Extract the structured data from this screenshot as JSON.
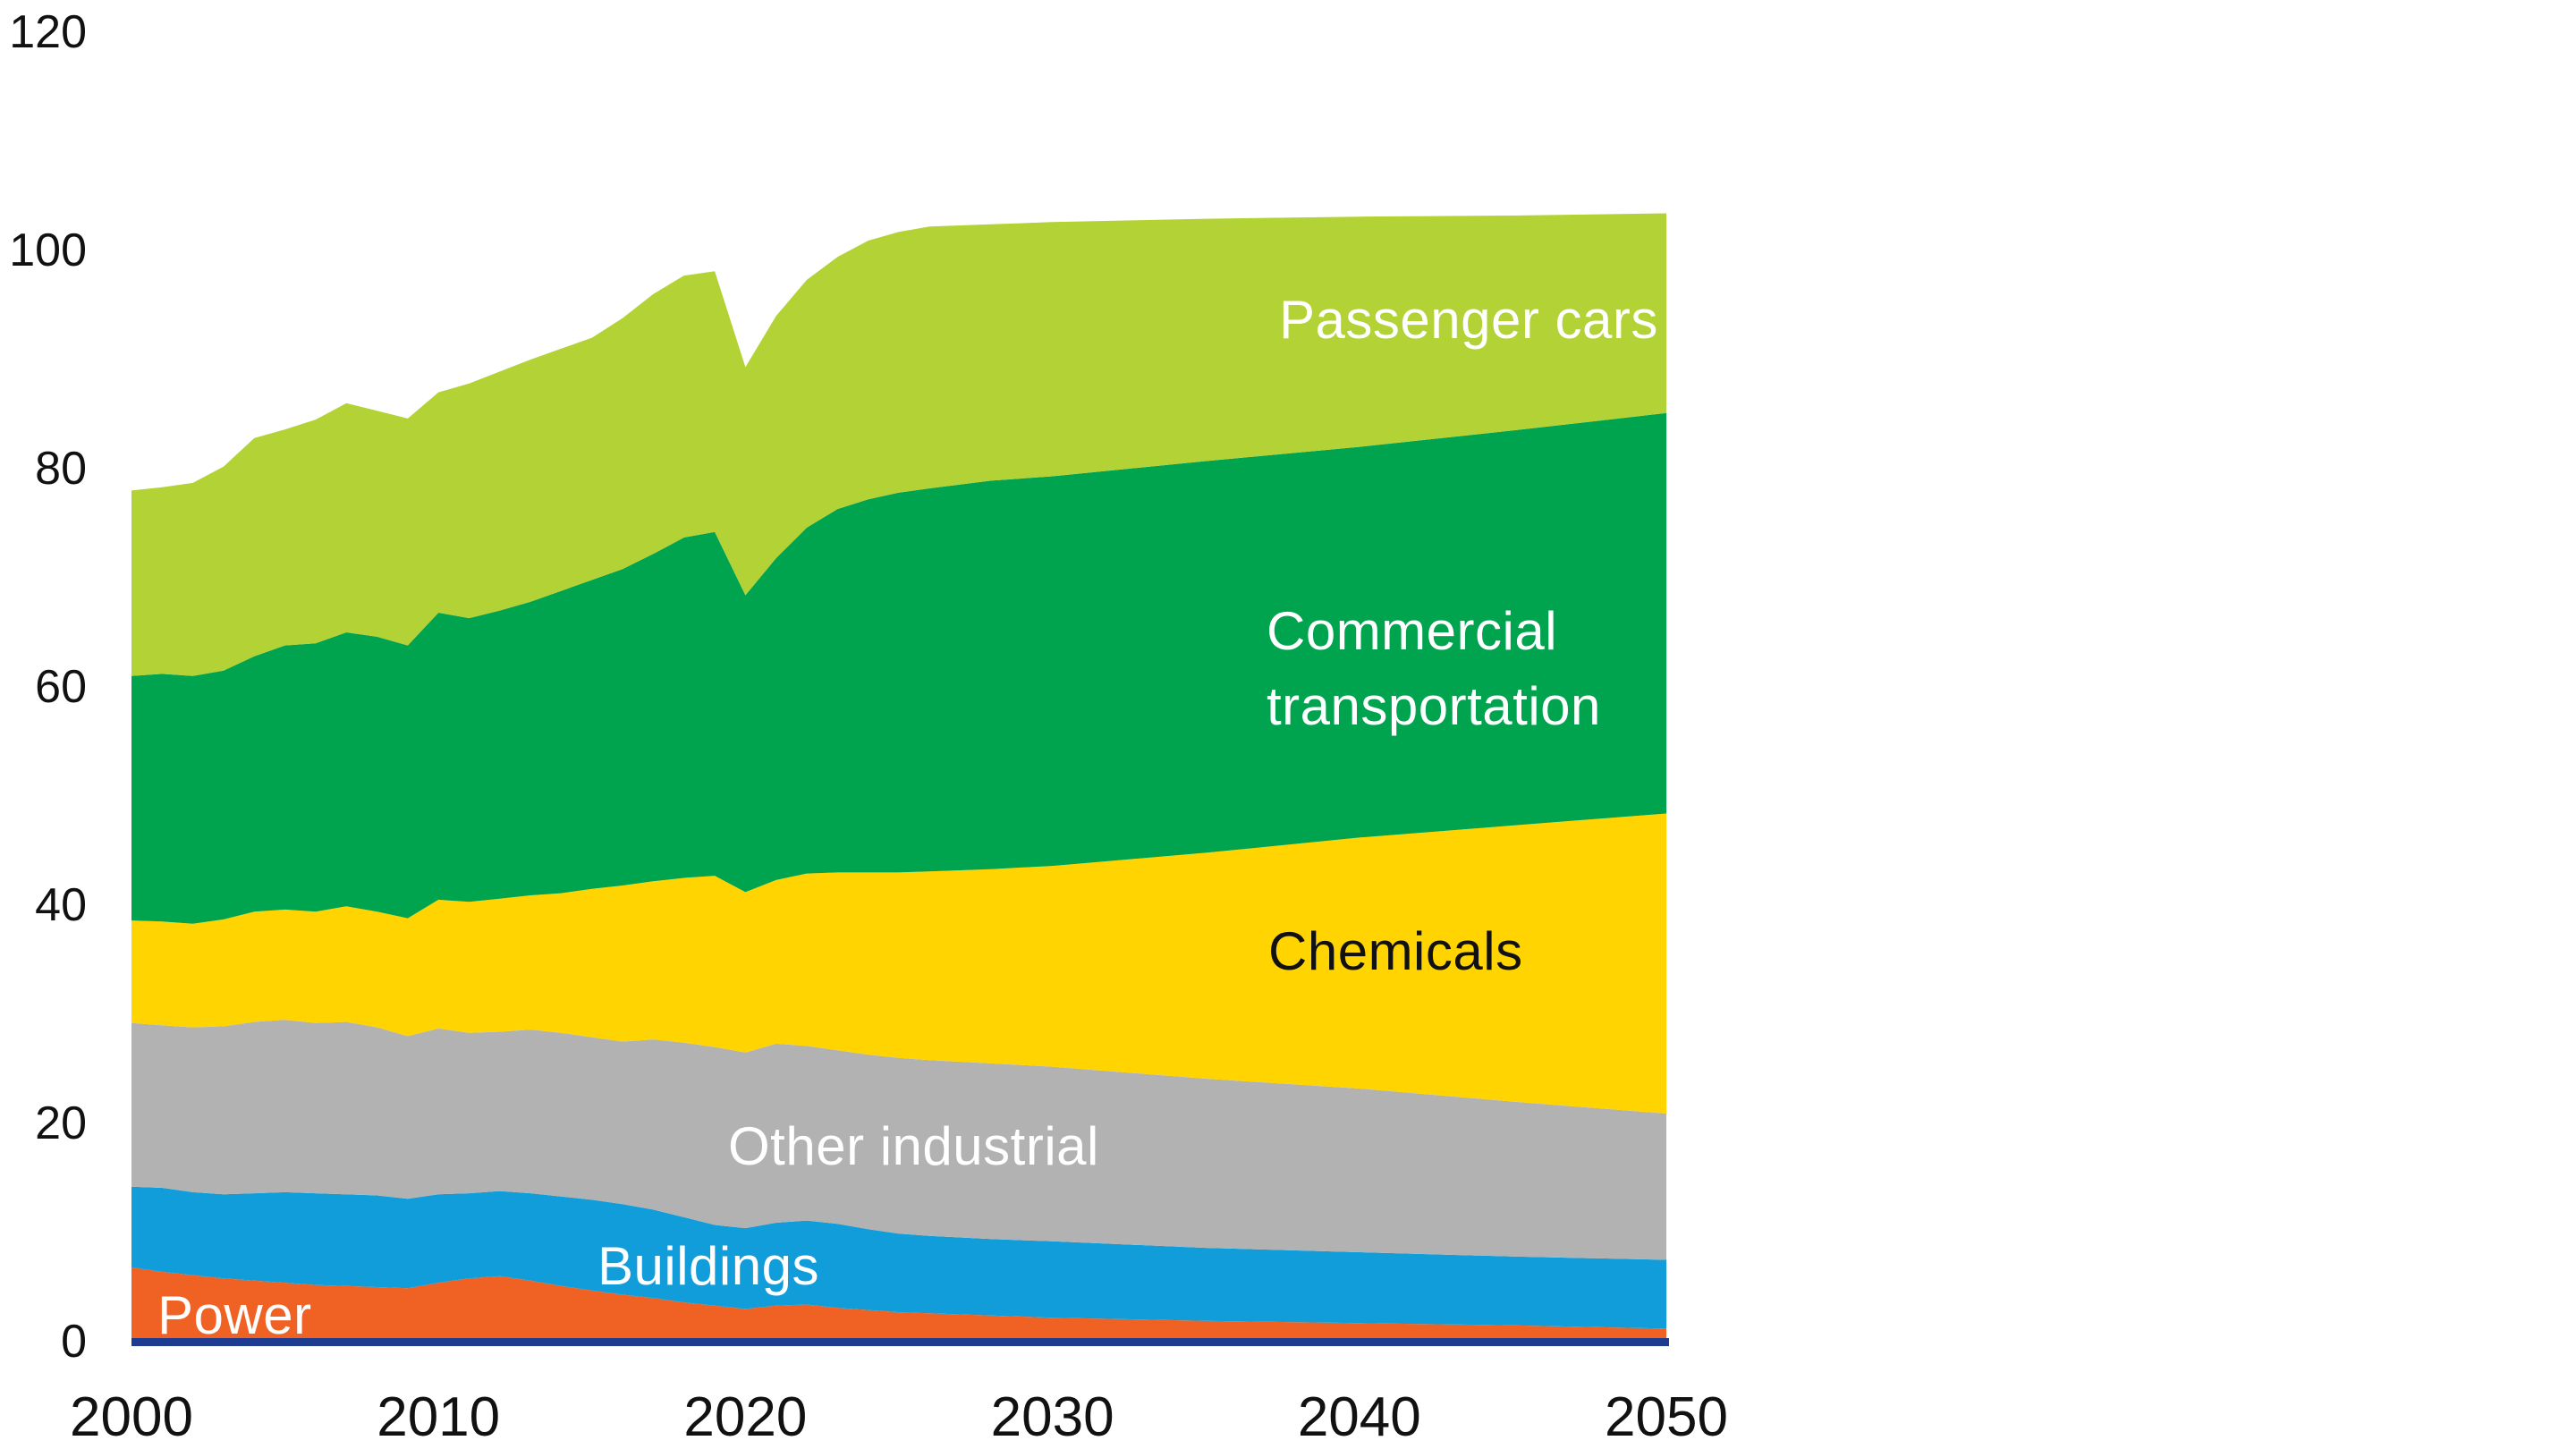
{
  "chart_data": {
    "type": "area",
    "stacked": true,
    "title": "",
    "xlabel": "",
    "ylabel": "",
    "xlim": [
      2000,
      2050
    ],
    "ylim": [
      0,
      120
    ],
    "grid": false,
    "legend": "inline-labels",
    "background_color": "#ffffff",
    "axis_line_color": "#1e3c8f",
    "tick_label_color": "#111111",
    "x_ticks": [
      2000,
      2010,
      2020,
      2030,
      2040,
      2050
    ],
    "y_ticks": [
      0,
      20,
      40,
      60,
      80,
      100,
      120
    ],
    "x": [
      2000,
      2001,
      2002,
      2003,
      2004,
      2005,
      2006,
      2007,
      2008,
      2009,
      2010,
      2011,
      2012,
      2013,
      2014,
      2015,
      2016,
      2017,
      2018,
      2019,
      2020,
      2021,
      2022,
      2023,
      2024,
      2025,
      2026,
      2028,
      2030,
      2035,
      2040,
      2045,
      2050
    ],
    "series": [
      {
        "name": "Power",
        "color": "#ef6223",
        "label_color": "#ffffff",
        "values": [
          6.8,
          6.4,
          6.1,
          5.8,
          5.6,
          5.4,
          5.2,
          5.1,
          5.0,
          4.9,
          5.4,
          5.8,
          6.0,
          5.6,
          5.1,
          4.7,
          4.3,
          4.0,
          3.6,
          3.3,
          3.0,
          3.3,
          3.4,
          3.1,
          2.9,
          2.7,
          2.6,
          2.4,
          2.2,
          1.9,
          1.7,
          1.5,
          1.2
        ]
      },
      {
        "name": "Buildings",
        "color": "#109dd9",
        "label_color": "#ffffff",
        "values": [
          7.4,
          7.7,
          7.6,
          7.7,
          8.0,
          8.3,
          8.4,
          8.4,
          8.4,
          8.2,
          8.1,
          7.8,
          7.8,
          8.0,
          8.2,
          8.3,
          8.3,
          8.1,
          7.8,
          7.4,
          7.4,
          7.6,
          7.7,
          7.7,
          7.4,
          7.2,
          7.1,
          7.0,
          7.0,
          6.7,
          6.5,
          6.3,
          6.3
        ]
      },
      {
        "name": "Other industrial",
        "color": "#b2b2b2",
        "label_color": "#ffffff",
        "values": [
          15.0,
          14.9,
          15.1,
          15.4,
          15.7,
          15.8,
          15.6,
          15.8,
          15.4,
          14.9,
          15.2,
          14.7,
          14.6,
          15.0,
          15.0,
          14.9,
          14.9,
          15.6,
          16.0,
          16.3,
          16.1,
          16.4,
          16.0,
          15.9,
          16.0,
          16.1,
          16.1,
          16.1,
          16.0,
          15.5,
          15.0,
          14.2,
          13.4
        ]
      },
      {
        "name": "Chemicals",
        "color": "#ffd400",
        "label_color": "#111111",
        "values": [
          9.4,
          9.5,
          9.5,
          9.8,
          10.1,
          10.1,
          10.2,
          10.6,
          10.6,
          10.8,
          11.8,
          12.0,
          12.2,
          12.3,
          12.8,
          13.6,
          14.3,
          14.5,
          15.1,
          15.7,
          14.7,
          15.0,
          15.8,
          16.3,
          16.7,
          17.0,
          17.3,
          17.8,
          18.4,
          20.7,
          23.0,
          25.3,
          27.5
        ]
      },
      {
        "name": "Commercial transportation",
        "color": "#00a34e",
        "label_color": "#ffffff",
        "values": [
          22.4,
          22.7,
          22.7,
          22.8,
          23.4,
          24.2,
          24.6,
          25.1,
          25.2,
          25.0,
          26.3,
          26.0,
          26.4,
          26.9,
          27.7,
          28.3,
          29.0,
          30.0,
          31.2,
          31.5,
          27.2,
          29.5,
          31.7,
          33.3,
          34.2,
          34.8,
          35.1,
          35.6,
          35.7,
          35.9,
          35.8,
          36.2,
          36.7
        ]
      },
      {
        "name": "Passenger cars",
        "color": "#b2d235",
        "label_color": "#ffffff",
        "values": [
          17.0,
          17.1,
          17.7,
          18.7,
          20.0,
          19.8,
          20.5,
          21.0,
          20.7,
          20.8,
          20.2,
          21.5,
          21.9,
          22.2,
          22.2,
          22.2,
          23.0,
          23.8,
          24.0,
          23.9,
          20.9,
          22.2,
          22.7,
          23.1,
          23.7,
          23.9,
          24.0,
          23.5,
          23.3,
          22.2,
          21.1,
          19.7,
          18.3
        ]
      }
    ]
  }
}
